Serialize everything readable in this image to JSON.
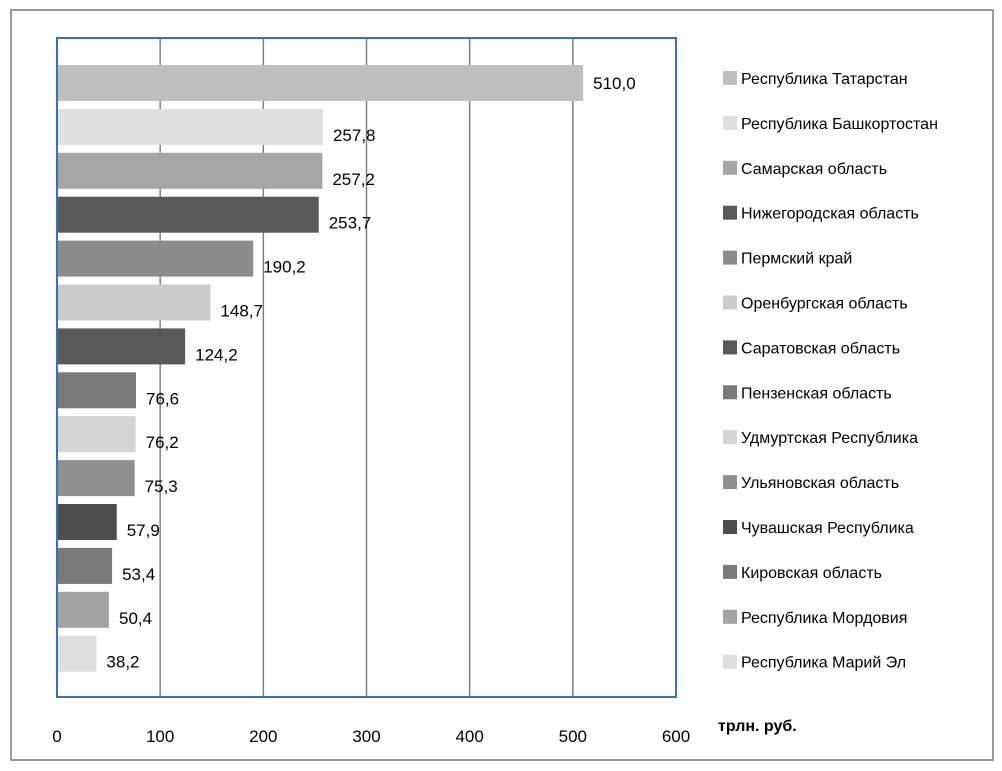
{
  "chart_data": {
    "type": "bar",
    "orientation": "horizontal",
    "categories": [
      "Республика Татарстан",
      "Республика Башкортостан",
      "Самарская область",
      "Нижегородская область",
      "Пермский край",
      "Оренбургская область",
      "Саратовская область",
      "Пензенская область",
      "Удмуртская Республика",
      "Ульяновская область",
      "Чувашская Республика",
      "Кировская область",
      "Республика Мордовия",
      "Республика Марий Эл"
    ],
    "values": [
      510.0,
      257.8,
      257.2,
      253.7,
      190.2,
      148.7,
      124.2,
      76.6,
      76.2,
      75.3,
      57.9,
      53.4,
      50.4,
      38.2
    ],
    "value_labels": [
      "510,0",
      "257,8",
      "257,2",
      "253,7",
      "190,2",
      "148,7",
      "124,2",
      "76,6",
      "76,2",
      "75,3",
      "57,9",
      "53,4",
      "50,4",
      "38,2"
    ],
    "colors": [
      "#bfbfbf",
      "#e0e0e0",
      "#a6a6a6",
      "#595959",
      "#8c8c8c",
      "#cccccc",
      "#595959",
      "#7a7a7a",
      "#d4d4d4",
      "#8f8f8f",
      "#4d4d4d",
      "#7a7a7a",
      "#a3a3a3",
      "#dedede"
    ],
    "xlim": [
      0,
      600
    ],
    "x_ticks": [
      0,
      100,
      200,
      300,
      400,
      500,
      600
    ],
    "unit_label": "трлн. руб.",
    "grid": "vertical",
    "legend_position": "right",
    "plot_border_color": "#3b6fb6",
    "grid_color": "#808080"
  }
}
